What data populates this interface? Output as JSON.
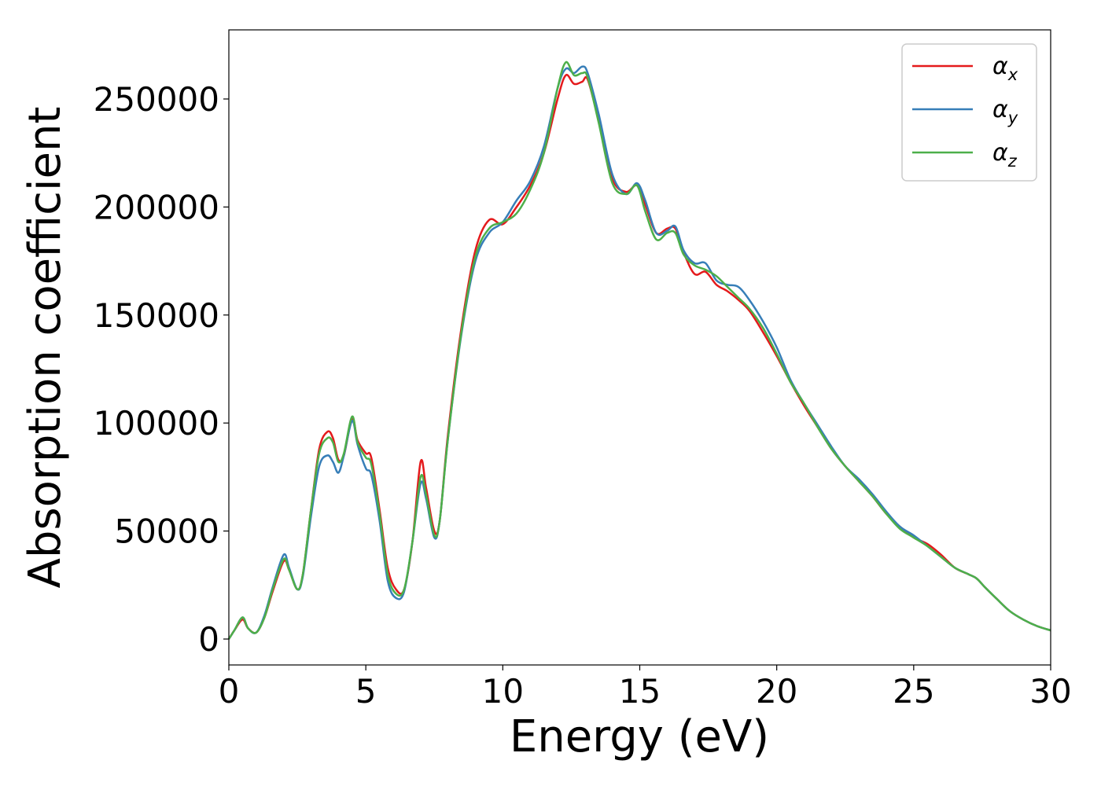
{
  "chart_data": {
    "type": "line",
    "title": "",
    "xlabel": "Energy (eV)",
    "ylabel": "Absorption coefficient",
    "xlim": [
      0,
      30
    ],
    "ylim": [
      -12000,
      282000
    ],
    "xticks": [
      0,
      5,
      10,
      15,
      20,
      25,
      30
    ],
    "yticks": [
      0,
      50000,
      100000,
      150000,
      200000,
      250000
    ],
    "xtick_labels": [
      "0",
      "5",
      "10",
      "15",
      "20",
      "25",
      "30"
    ],
    "ytick_labels": [
      "0",
      "50000",
      "100000",
      "150000",
      "200000",
      "250000"
    ],
    "grid": false,
    "legend_position": "top-right",
    "x": [
      0,
      0.2,
      0.5,
      0.7,
      1.0,
      1.3,
      1.6,
      2.0,
      2.2,
      2.5,
      2.7,
      3.0,
      3.3,
      3.6,
      3.8,
      4.0,
      4.2,
      4.5,
      4.7,
      5.0,
      5.2,
      5.5,
      5.8,
      6.1,
      6.4,
      6.7,
      7.0,
      7.2,
      7.5,
      7.7,
      8.0,
      8.5,
      9.0,
      9.5,
      10.0,
      10.5,
      11.0,
      11.5,
      12.0,
      12.3,
      12.6,
      12.9,
      13.1,
      13.5,
      14.0,
      14.5,
      14.9,
      15.2,
      15.6,
      16.0,
      16.3,
      16.6,
      17.0,
      17.4,
      17.8,
      18.2,
      18.6,
      19.0,
      19.5,
      20.0,
      20.5,
      21.0,
      21.5,
      22.0,
      22.5,
      23.0,
      23.5,
      24.0,
      24.5,
      25.0,
      25.5,
      26.0,
      26.5,
      27.0,
      27.3,
      27.6,
      28.0,
      28.5,
      29.0,
      29.5,
      30.0
    ],
    "series": [
      {
        "name": "α_x",
        "color": "#e41a1c",
        "values": [
          0,
          4000,
          9000,
          5000,
          3000,
          10000,
          22000,
          36000,
          32000,
          23000,
          30000,
          60000,
          88000,
          96000,
          93000,
          83000,
          85000,
          102000,
          92000,
          86000,
          84000,
          60000,
          33000,
          23000,
          23000,
          45000,
          82000,
          70000,
          50000,
          55000,
          95000,
          145000,
          180000,
          194000,
          192000,
          200000,
          210000,
          225000,
          250000,
          261000,
          257000,
          258000,
          259000,
          240000,
          213000,
          207000,
          210000,
          201000,
          188000,
          190000,
          190000,
          179000,
          169000,
          170000,
          164000,
          161000,
          157000,
          152000,
          142000,
          131000,
          119000,
          108000,
          98000,
          88000,
          80000,
          73000,
          66000,
          58000,
          52000,
          47000,
          44000,
          39000,
          33000,
          30000,
          28000,
          24000,
          19000,
          13000,
          9000,
          6000,
          4000
        ]
      },
      {
        "name": "α_y",
        "color": "#377eb8",
        "values": [
          0,
          4000,
          10000,
          5000,
          3000,
          11000,
          24000,
          39000,
          33000,
          23000,
          29000,
          57000,
          80000,
          85000,
          82000,
          77000,
          85000,
          101000,
          90000,
          79000,
          76000,
          55000,
          27000,
          19000,
          22000,
          45000,
          72000,
          65000,
          47000,
          55000,
          93000,
          142000,
          175000,
          188000,
          193000,
          203000,
          212000,
          228000,
          255000,
          264000,
          262000,
          265000,
          262000,
          243000,
          215000,
          206000,
          211000,
          203000,
          188000,
          189000,
          191000,
          180000,
          174000,
          174000,
          166000,
          164000,
          163000,
          157000,
          147000,
          135000,
          120000,
          109000,
          99000,
          89000,
          80000,
          74000,
          67000,
          59000,
          52000,
          48000,
          43000,
          38000,
          33000,
          30000,
          28000,
          24000,
          19000,
          13000,
          9000,
          6000,
          4000
        ]
      },
      {
        "name": "α_z",
        "color": "#4daf4a",
        "values": [
          0,
          4000,
          10000,
          5000,
          3000,
          10000,
          23000,
          37000,
          32000,
          23000,
          30000,
          60000,
          86000,
          93000,
          91000,
          82000,
          86000,
          103000,
          91000,
          84000,
          81000,
          58000,
          30000,
          21000,
          23000,
          45000,
          75000,
          67000,
          48000,
          55000,
          93000,
          143000,
          177000,
          190000,
          193000,
          197000,
          208000,
          225000,
          255000,
          267000,
          261000,
          262000,
          260000,
          239000,
          211000,
          206000,
          210000,
          198000,
          185000,
          188000,
          188000,
          178000,
          173000,
          171000,
          168000,
          163000,
          158000,
          153000,
          144000,
          132000,
          119000,
          109000,
          98000,
          88000,
          80000,
          73000,
          66000,
          58000,
          51000,
          47000,
          43000,
          38000,
          33000,
          30000,
          28000,
          24000,
          19000,
          13000,
          9000,
          6000,
          4000
        ]
      }
    ]
  }
}
